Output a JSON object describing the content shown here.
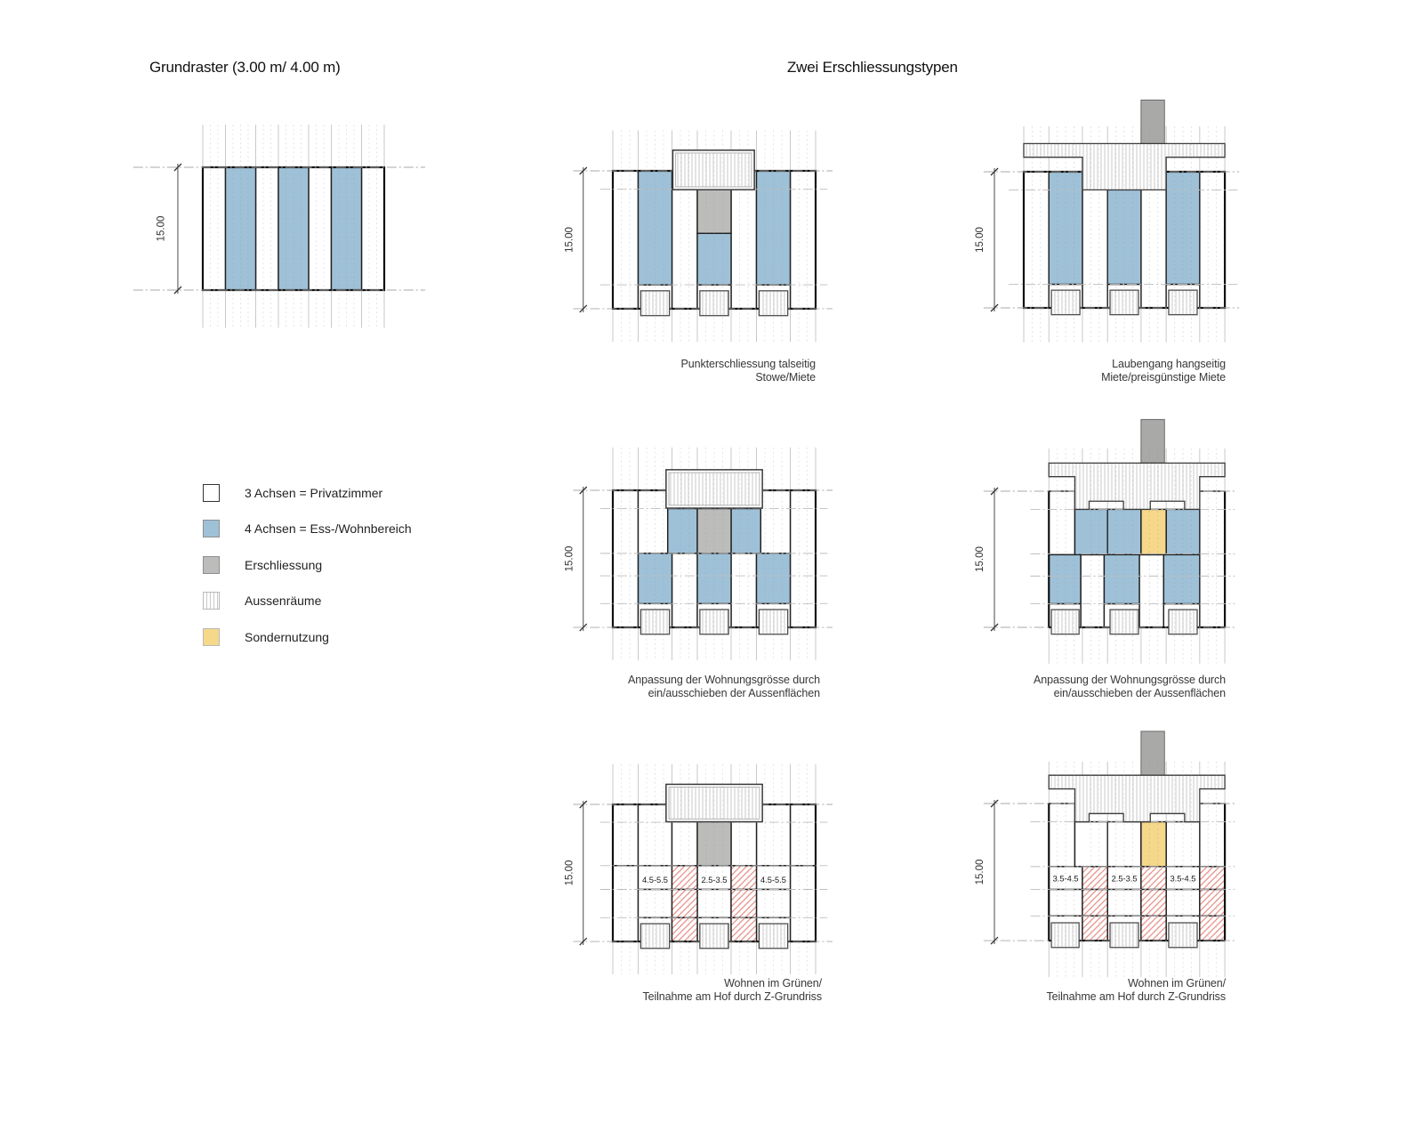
{
  "page": {
    "title_left": "Grundraster (3.00 m/ 4.00 m)",
    "title_right": "Zwei Erschliessungstypen"
  },
  "legend": {
    "items": [
      {
        "label": "3 Achsen = Privatzimmer",
        "swatch": "white"
      },
      {
        "label": "4 Achsen = Ess-/Wohnbereich",
        "swatch": "blue"
      },
      {
        "label": "Erschliessung",
        "swatch": "gray"
      },
      {
        "label": "Aussenräume",
        "swatch": "hatch"
      },
      {
        "label": "Sondernutzung",
        "swatch": "yellow"
      }
    ]
  },
  "colors": {
    "blue": "#9fc1d8",
    "gray": "#bcbcba",
    "tower_gray": "#a9a9a7",
    "yellow": "#f6d88a",
    "red_hatch": "#e8938b",
    "outline": "#1f1f1f",
    "heavy_outline": "#111111",
    "grid_major": "#c9c9c9",
    "grid_minor": "#8c8c8c",
    "helper": "#a8a8a8",
    "hatch_line": "#c9c9c9",
    "dim": "#4a4a4a",
    "text": "#2e2e2e"
  },
  "diagrams": {
    "grundraster": {
      "dim_label": "15.00"
    },
    "punkt": {
      "dim_label": "15.00",
      "caption": [
        "Punkterschliessung talseitig",
        "Stowe/Miete"
      ]
    },
    "laubengang": {
      "dim_label": "15.00",
      "caption": [
        "Laubengang hangseitig",
        "Miete/preisgünstige Miete"
      ]
    },
    "anpassung_links": {
      "dim_label": "15.00",
      "caption": [
        "Anpassung der Wohnungsgrösse durch",
        "ein/ausschieben der Aussenflächen"
      ]
    },
    "anpassung_rechts": {
      "dim_label": "15.00",
      "caption": [
        "Anpassung der Wohnungsgrösse durch",
        "ein/ausschieben der Aussenflächen"
      ]
    },
    "wohnen_links": {
      "dim_label": "15.00",
      "caption": [
        "Wohnen im Grünen/",
        "Teilnahme am Hof durch Z-Grundriss"
      ],
      "room_labels": [
        "4.5-5.5",
        "2.5-3.5",
        "4.5-5.5"
      ]
    },
    "wohnen_rechts": {
      "dim_label": "15.00",
      "caption": [
        "Wohnen im Grünen/",
        "Teilnahme am Hof durch Z-Grundriss"
      ],
      "room_labels": [
        "3.5-4.5",
        "2.5-3.5",
        "3.5-4.5"
      ]
    }
  }
}
